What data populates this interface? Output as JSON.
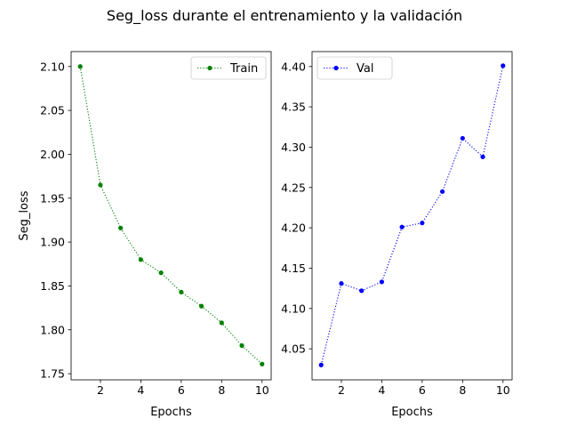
{
  "figure": {
    "title": "Seg_loss durante el entrenamiento y la validación"
  },
  "chart_data": [
    {
      "type": "line",
      "title": "",
      "xlabel": "Epochs",
      "ylabel": "Seg_loss",
      "x": [
        1,
        2,
        3,
        4,
        5,
        6,
        7,
        8,
        9,
        10
      ],
      "xticks": [
        2,
        4,
        6,
        8,
        10
      ],
      "yticks": [
        1.75,
        1.8,
        1.85,
        1.9,
        1.95,
        2.0,
        2.05,
        2.1
      ],
      "ytick_labels": [
        "1.75",
        "1.80",
        "1.85",
        "1.90",
        "1.95",
        "2.00",
        "2.05",
        "2.10"
      ],
      "xlim": [
        0.55,
        10.45
      ],
      "ylim": [
        1.743,
        2.117
      ],
      "grid": false,
      "legend": "upper right",
      "series": [
        {
          "name": "Train",
          "color": "#008000",
          "linestyle": "dotted",
          "marker": "circle",
          "values": [
            2.1,
            1.965,
            1.916,
            1.88,
            1.865,
            1.843,
            1.827,
            1.808,
            1.782,
            1.761
          ]
        }
      ]
    },
    {
      "type": "line",
      "title": "",
      "xlabel": "Epochs",
      "ylabel": "",
      "x": [
        1,
        2,
        3,
        4,
        5,
        6,
        7,
        8,
        9,
        10
      ],
      "xticks": [
        2,
        4,
        6,
        8,
        10
      ],
      "yticks": [
        4.05,
        4.1,
        4.15,
        4.2,
        4.25,
        4.3,
        4.35,
        4.4
      ],
      "ytick_labels": [
        "4.05",
        "4.10",
        "4.15",
        "4.20",
        "4.25",
        "4.30",
        "4.35",
        "4.40"
      ],
      "xlim": [
        0.55,
        10.45
      ],
      "ylim": [
        4.0115,
        4.4185
      ],
      "grid": false,
      "legend": "upper left",
      "series": [
        {
          "name": "Val",
          "color": "#0000ff",
          "linestyle": "dotted",
          "marker": "circle",
          "values": [
            4.03,
            4.131,
            4.122,
            4.133,
            4.201,
            4.206,
            4.245,
            4.311,
            4.288,
            4.401
          ]
        }
      ]
    }
  ]
}
